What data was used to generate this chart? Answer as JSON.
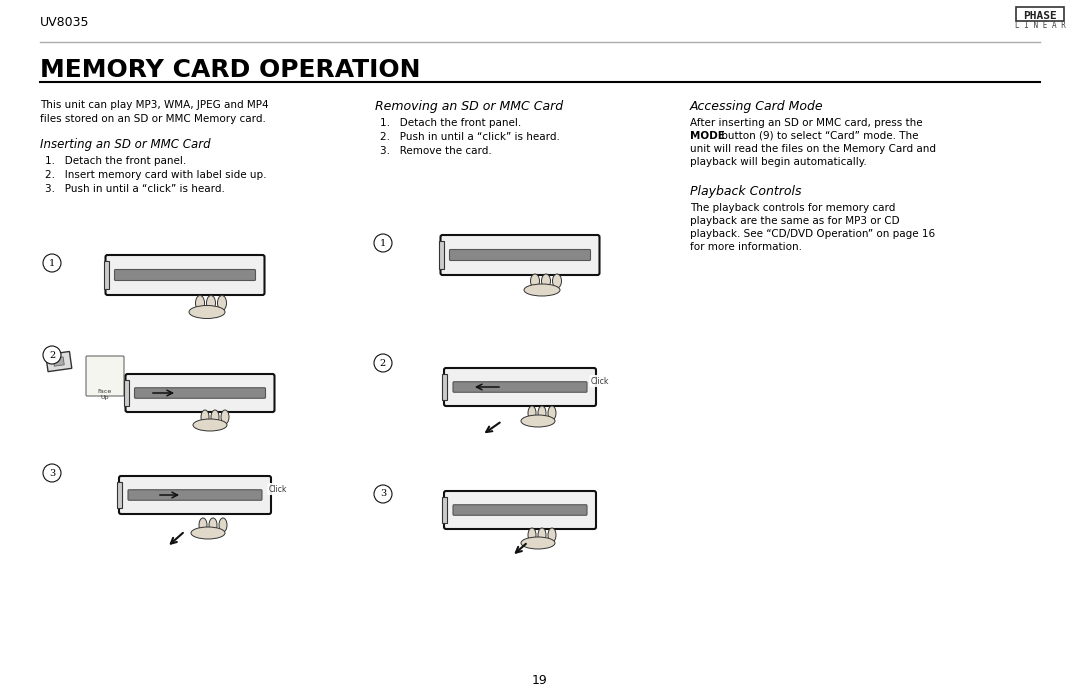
{
  "page_number": "19",
  "header_text": "UV8035",
  "title": "MEMORY CARD OPERATION",
  "bg_color": "#ffffff",
  "text_color": "#000000",
  "header_line_color": "#999999",
  "intro_text_1": "This unit can play MP3, WMA, JPEG and MP4",
  "intro_text_2": "files stored on an SD or MMC Memory card.",
  "section1_title": "Inserting an SD or MMC Card",
  "section1_items": [
    "1.   Detach the front panel.",
    "2.   Insert memory card with label side up.",
    "3.   Push in until a “click” is heard."
  ],
  "section2_title": "Removing an SD or MMC Card",
  "section2_items": [
    "1.   Detach the front panel.",
    "2.   Push in until a “click” is heard.",
    "3.   Remove the card."
  ],
  "section3_title": "Accessing Card Mode",
  "section3_line1": "After inserting an SD or MMC card, press the",
  "section3_line2_bold": "MODE",
  "section3_line2_rest": " button (9) to select “Card” mode. The",
  "section3_line3": "unit will read the files on the Memory Card and",
  "section3_line4": "playback will begin automatically.",
  "section4_title": "Playback Controls",
  "section4_lines": [
    "The playback controls for memory card",
    "playback are the same as for MP3 or CD",
    "playback. See “CD/DVD Operation” on page 16",
    "for more information."
  ]
}
